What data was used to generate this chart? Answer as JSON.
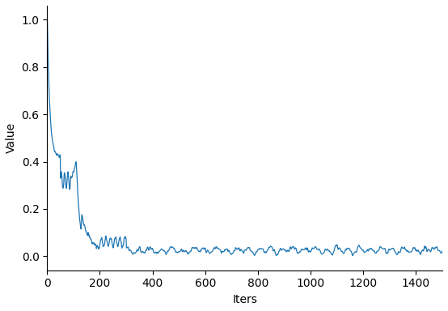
{
  "title": "",
  "xlabel": "Iters",
  "ylabel": "Value",
  "xlim": [
    0,
    1500
  ],
  "ylim": [
    -0.05,
    1.05
  ],
  "xticks": [
    0,
    200,
    400,
    600,
    800,
    1000,
    1200,
    1400
  ],
  "yticks": [
    0.0,
    0.2,
    0.4,
    0.6,
    0.8,
    1.0
  ],
  "line_color": "#1f77b4",
  "line_width": 0.9,
  "background_color": "#ffffff",
  "figsize": [
    5.54,
    3.84
  ],
  "dpi": 100
}
